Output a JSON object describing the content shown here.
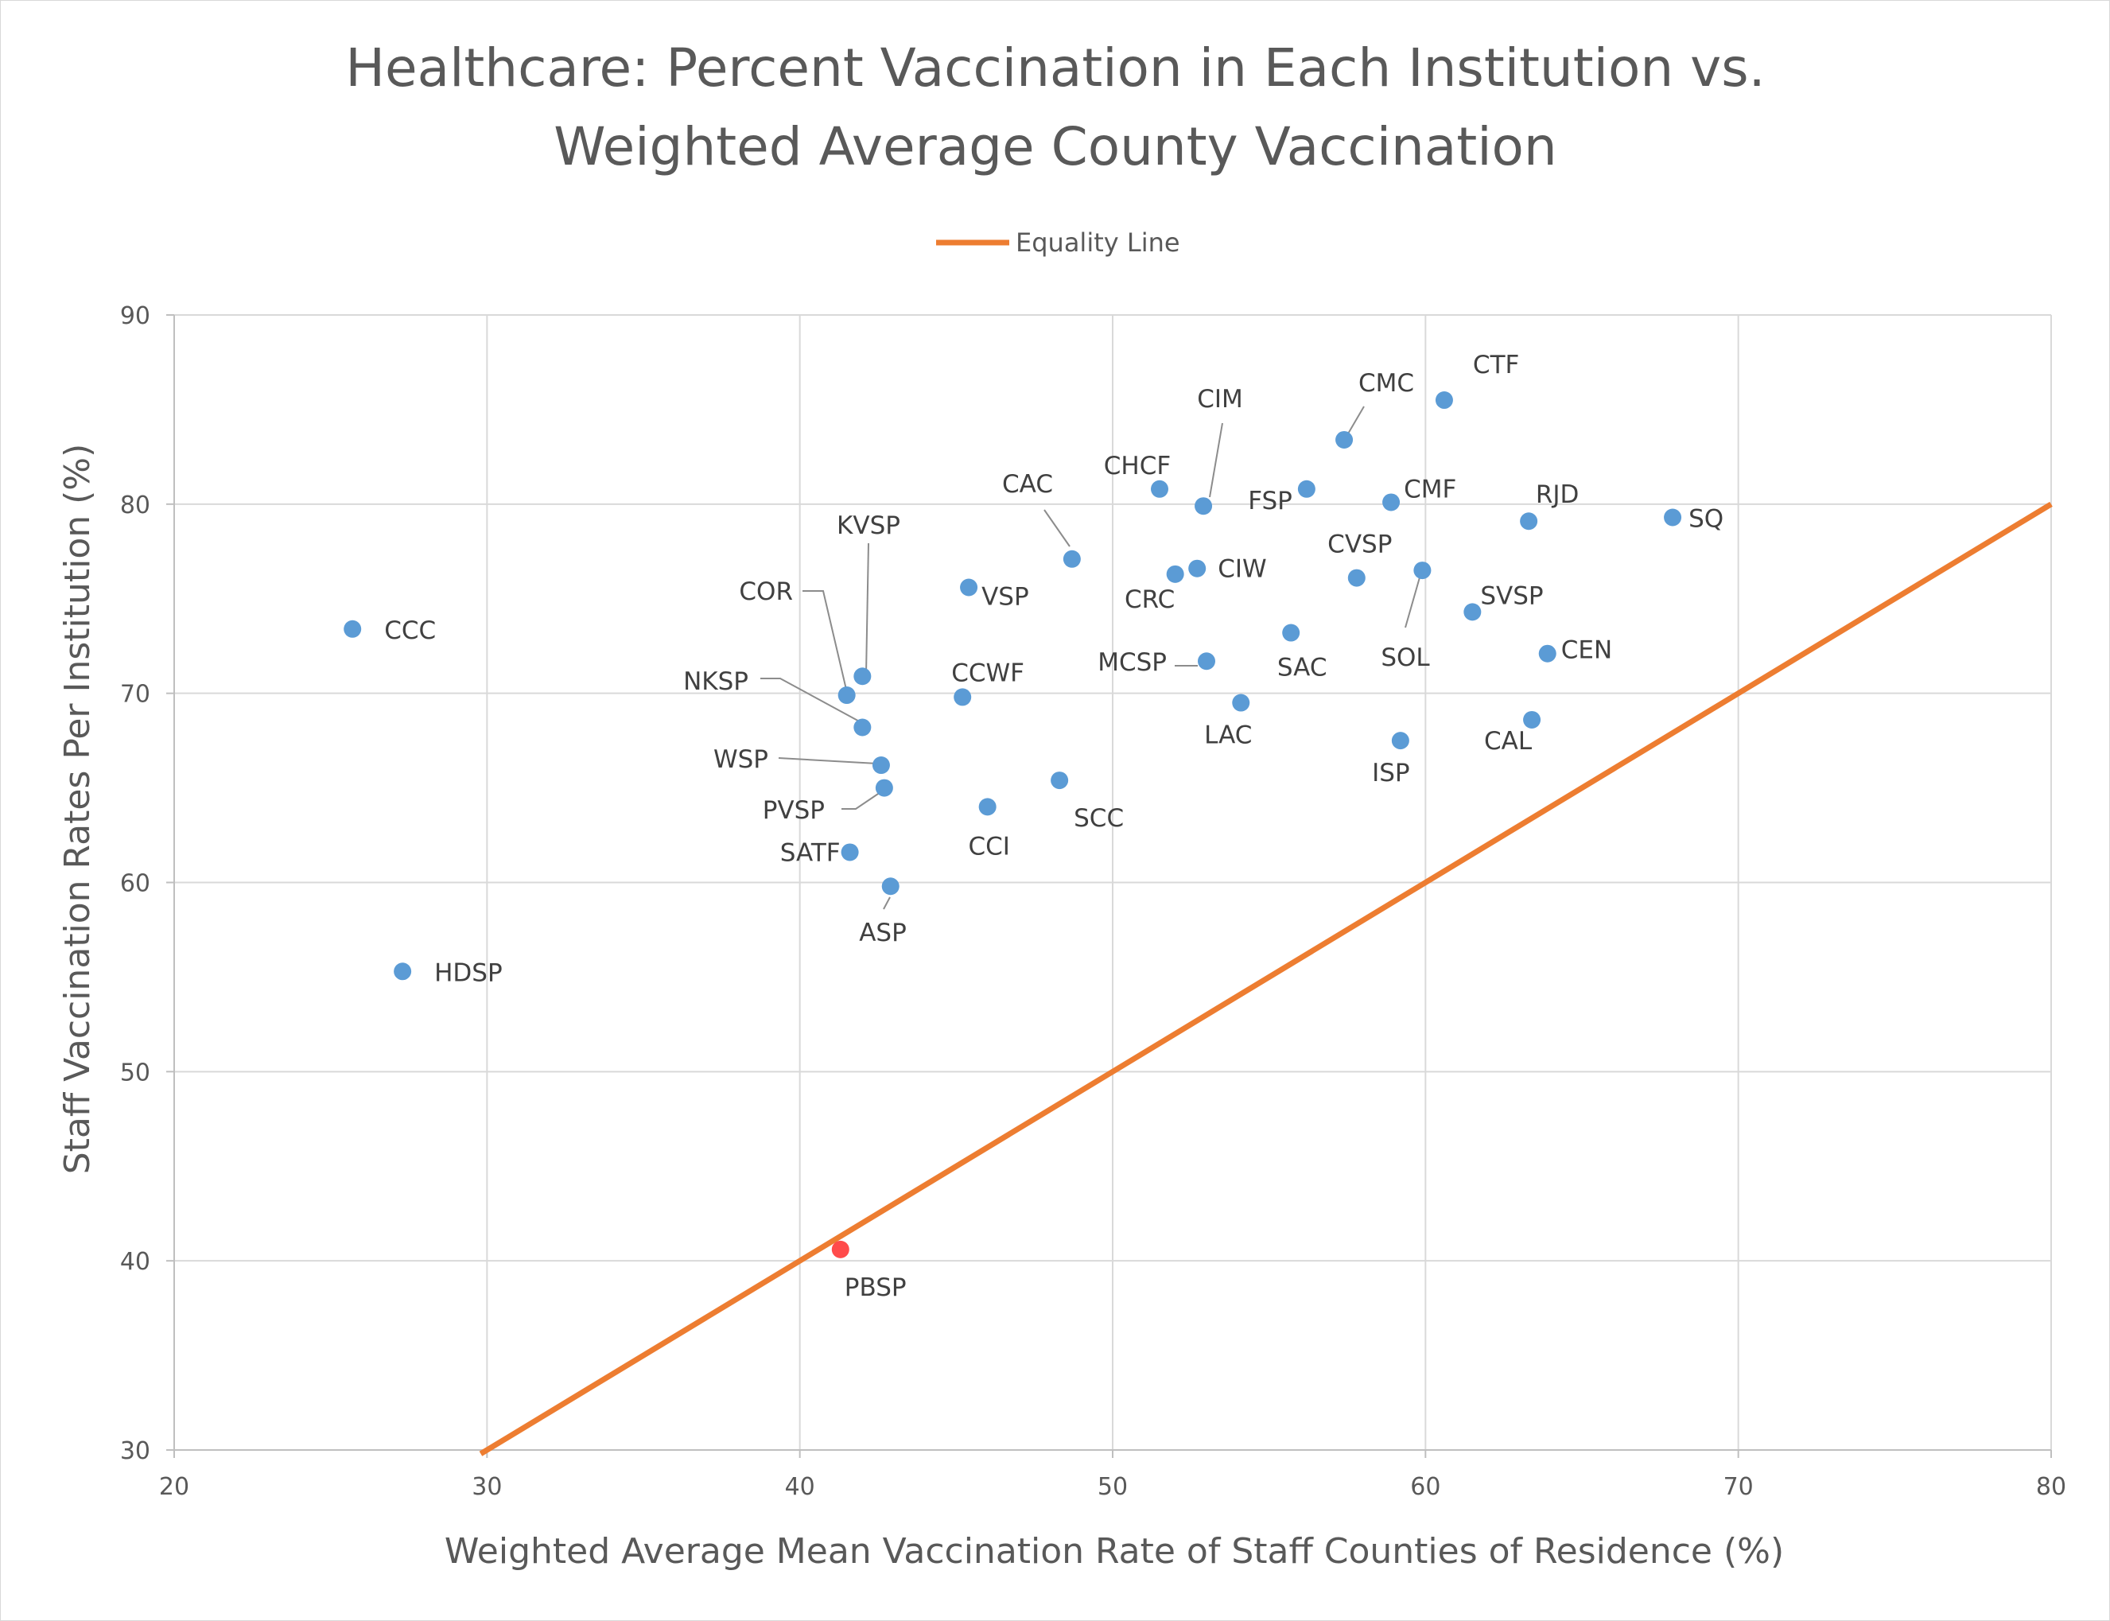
{
  "chart_data": {
    "type": "scatter",
    "title_lines": [
      "Healthcare: Percent Vaccination in Each Institution vs.",
      "Weighted Average County Vaccination"
    ],
    "xlabel": "Weighted Average Mean Vaccination Rate of Staff Counties of Residence (%)",
    "ylabel": "Staff Vaccination Rates Per Institution (%)",
    "xlim": [
      20,
      80
    ],
    "ylim": [
      30,
      90
    ],
    "xticks": [
      "20",
      "30",
      "40",
      "50",
      "60",
      "70",
      "80"
    ],
    "yticks": [
      "30",
      "40",
      "50",
      "60",
      "70",
      "80",
      "90"
    ],
    "grid": true,
    "legend_position": "top-center",
    "legend": [
      {
        "name": "Equality Line",
        "color": "#ed7d31"
      }
    ],
    "line": {
      "name": "Equality Line",
      "color": "#ed7d31",
      "x": [
        29.8,
        80
      ],
      "y": [
        29.8,
        80
      ]
    },
    "point_color": "#5b9bd5",
    "highlight_color": "#ff4b4b",
    "points": [
      {
        "label": "CCC",
        "x": 25.7,
        "y": 73.4
      },
      {
        "label": "HDSP",
        "x": 27.3,
        "y": 55.3
      },
      {
        "label": "PBSP",
        "x": 41.3,
        "y": 40.6,
        "highlight": true
      },
      {
        "label": "COR",
        "x": 41.5,
        "y": 69.9
      },
      {
        "label": "KVSP",
        "x": 42.0,
        "y": 70.9
      },
      {
        "label": "NKSP",
        "x": 42.0,
        "y": 68.2
      },
      {
        "label": "WSP",
        "x": 42.6,
        "y": 66.2
      },
      {
        "label": "PVSP",
        "x": 42.7,
        "y": 65.0
      },
      {
        "label": "SATF",
        "x": 41.6,
        "y": 61.6
      },
      {
        "label": "ASP",
        "x": 42.9,
        "y": 59.8
      },
      {
        "label": "VSP",
        "x": 45.4,
        "y": 75.6
      },
      {
        "label": "CCWF",
        "x": 45.2,
        "y": 69.8
      },
      {
        "label": "CCI",
        "x": 46.0,
        "y": 64.0
      },
      {
        "label": "SCC",
        "x": 48.3,
        "y": 65.4
      },
      {
        "label": "CAC",
        "x": 48.7,
        "y": 77.1
      },
      {
        "label": "CHCF",
        "x": 51.5,
        "y": 80.8
      },
      {
        "label": "CIM",
        "x": 52.9,
        "y": 79.9
      },
      {
        "label": "CRC",
        "x": 52.0,
        "y": 76.3
      },
      {
        "label": "CIW",
        "x": 52.7,
        "y": 76.6
      },
      {
        "label": "MCSP",
        "x": 53.0,
        "y": 71.7
      },
      {
        "label": "LAC",
        "x": 54.1,
        "y": 69.5
      },
      {
        "label": "SAC",
        "x": 55.7,
        "y": 73.2
      },
      {
        "label": "FSP",
        "x": 56.2,
        "y": 80.8
      },
      {
        "label": "CMC",
        "x": 57.4,
        "y": 83.4
      },
      {
        "label": "CVSP",
        "x": 57.8,
        "y": 76.1
      },
      {
        "label": "CMF",
        "x": 58.9,
        "y": 80.1
      },
      {
        "label": "ISP",
        "x": 59.2,
        "y": 67.5
      },
      {
        "label": "SOL",
        "x": 59.9,
        "y": 76.5
      },
      {
        "label": "CTF",
        "x": 60.6,
        "y": 85.5
      },
      {
        "label": "SVSP",
        "x": 61.5,
        "y": 74.3
      },
      {
        "label": "RJD",
        "x": 63.3,
        "y": 79.1
      },
      {
        "label": "CAL",
        "x": 63.4,
        "y": 68.6
      },
      {
        "label": "CEN",
        "x": 63.9,
        "y": 72.1
      },
      {
        "label": "SQ",
        "x": 67.9,
        "y": 79.3
      }
    ]
  }
}
